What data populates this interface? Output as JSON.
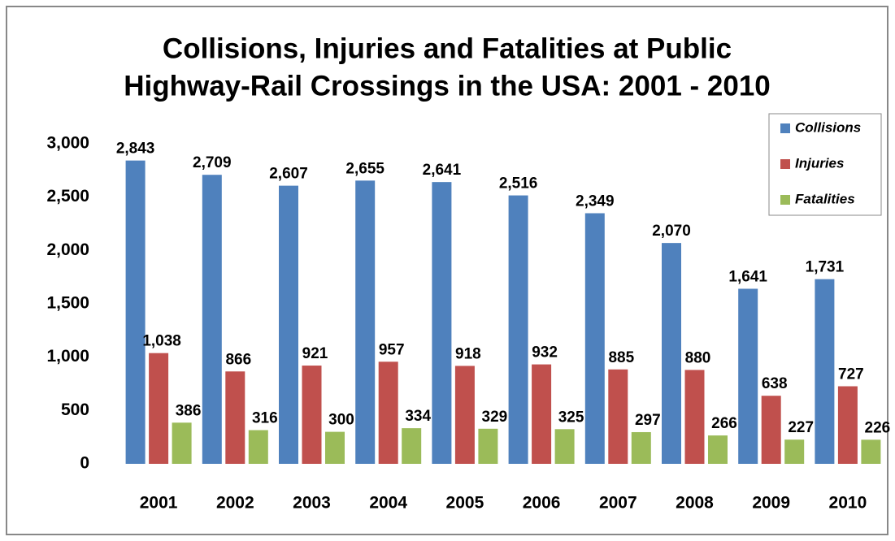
{
  "chart_data": {
    "type": "bar",
    "title": [
      "Collisions, Injuries and Fatalities at Public",
      "Highway-Rail Crossings in the USA:  2001 - 2010"
    ],
    "categories": [
      "2001",
      "2002",
      "2003",
      "2004",
      "2005",
      "2006",
      "2007",
      "2008",
      "2009",
      "2010"
    ],
    "series": [
      {
        "name": "Collisions",
        "color": "#4f81bd",
        "values": [
          2843,
          2709,
          2607,
          2655,
          2641,
          2516,
          2349,
          2070,
          1641,
          1731
        ],
        "value_labels": [
          "2,843",
          "2,709",
          "2,607",
          "2,655",
          "2,641",
          "2,516",
          "2,349",
          "2,070",
          "1,641",
          "1,731"
        ]
      },
      {
        "name": "Injuries",
        "color": "#c0504d",
        "values": [
          1038,
          866,
          921,
          957,
          918,
          932,
          885,
          880,
          638,
          727
        ],
        "value_labels": [
          "1,038",
          "866",
          "921",
          "957",
          "918",
          "932",
          "885",
          "880",
          "638",
          "727"
        ]
      },
      {
        "name": "Fatalities",
        "color": "#9bbb59",
        "values": [
          386,
          316,
          300,
          334,
          329,
          325,
          297,
          266,
          227,
          226
        ],
        "value_labels": [
          "386",
          "316",
          "300",
          "334",
          "329",
          "325",
          "297",
          "266",
          "227",
          "226"
        ]
      }
    ],
    "ylim": [
      0,
      3000
    ],
    "yticks": [
      0,
      500,
      {
        "value": 1000,
        "label": "1,000"
      },
      {
        "value": 1500,
        "label": "1,500"
      },
      {
        "value": 2000,
        "label": "2,000"
      },
      {
        "value": 2500,
        "label": "2,500"
      },
      {
        "value": 3000,
        "label": "3,000"
      }
    ],
    "grid": false,
    "legend": "top-right"
  }
}
